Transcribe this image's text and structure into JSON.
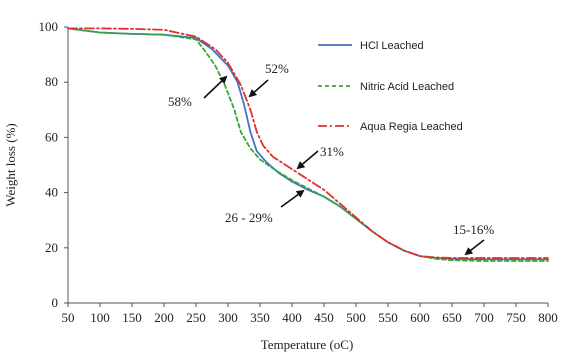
{
  "chart_data": {
    "type": "line",
    "xlabel": "Temperature (oC)",
    "ylabel": "Weight loss (%)",
    "xlim": [
      50,
      800
    ],
    "ylim": [
      0,
      100
    ],
    "xticks": [
      50,
      100,
      150,
      200,
      250,
      300,
      350,
      400,
      450,
      500,
      550,
      600,
      650,
      700,
      750,
      800
    ],
    "yticks": [
      0,
      20,
      40,
      60,
      80,
      100
    ],
    "grid": false,
    "legend_position": "top-right",
    "series": [
      {
        "name": "HCl Leached",
        "color": "#4472c4",
        "dash": "solid",
        "x": [
          50,
          100,
          150,
          200,
          250,
          275,
          300,
          315,
          325,
          335,
          345,
          360,
          380,
          400,
          425,
          450,
          475,
          500,
          525,
          550,
          575,
          600,
          625,
          650,
          700,
          750,
          800
        ],
        "y": [
          99.5,
          98,
          97.5,
          97.2,
          96,
          92,
          86,
          80,
          72,
          62,
          55,
          51,
          47,
          44,
          41,
          38.5,
          35,
          30.5,
          26,
          22,
          19,
          17,
          16.3,
          16,
          15.8,
          15.8,
          15.8
        ]
      },
      {
        "name": "Nitric Acid Leached",
        "color": "#33aa33",
        "dash": "dashed",
        "x": [
          50,
          100,
          150,
          200,
          250,
          265,
          280,
          295,
          310,
          320,
          335,
          350,
          375,
          400,
          425,
          450,
          475,
          500,
          525,
          550,
          575,
          600,
          625,
          650,
          700,
          750,
          800
        ],
        "y": [
          99.5,
          98,
          97.5,
          97.2,
          95.5,
          91,
          86,
          79,
          70,
          62,
          56,
          52,
          48,
          44.5,
          41.5,
          38.5,
          35,
          30.5,
          26,
          22,
          19,
          17,
          16,
          15.5,
          15.2,
          15.2,
          15.2
        ]
      },
      {
        "name": "Aqua Regia Leached",
        "color": "#e03030",
        "dash": "dashdot",
        "x": [
          50,
          100,
          150,
          200,
          250,
          280,
          300,
          320,
          335,
          345,
          355,
          370,
          390,
          410,
          430,
          450,
          475,
          500,
          525,
          550,
          575,
          600,
          625,
          650,
          700,
          750,
          800
        ],
        "y": [
          99.5,
          99.5,
          99.3,
          99,
          96.5,
          92,
          87,
          79,
          70,
          62,
          57,
          53,
          50,
          47,
          44,
          41,
          36,
          31,
          26,
          22,
          19,
          17,
          16.5,
          16.3,
          16.3,
          16.3,
          16.3
        ]
      }
    ],
    "annotations": [
      {
        "text": "58%",
        "target": [
          298,
          82
        ]
      },
      {
        "text": "52%",
        "target": [
          333,
          75
        ]
      },
      {
        "text": "31%",
        "target": [
          405,
          47
        ]
      },
      {
        "text": "26 - 29%",
        "target": [
          400,
          40
        ]
      },
      {
        "text": "15-16%",
        "target": [
          665,
          16
        ]
      }
    ]
  }
}
